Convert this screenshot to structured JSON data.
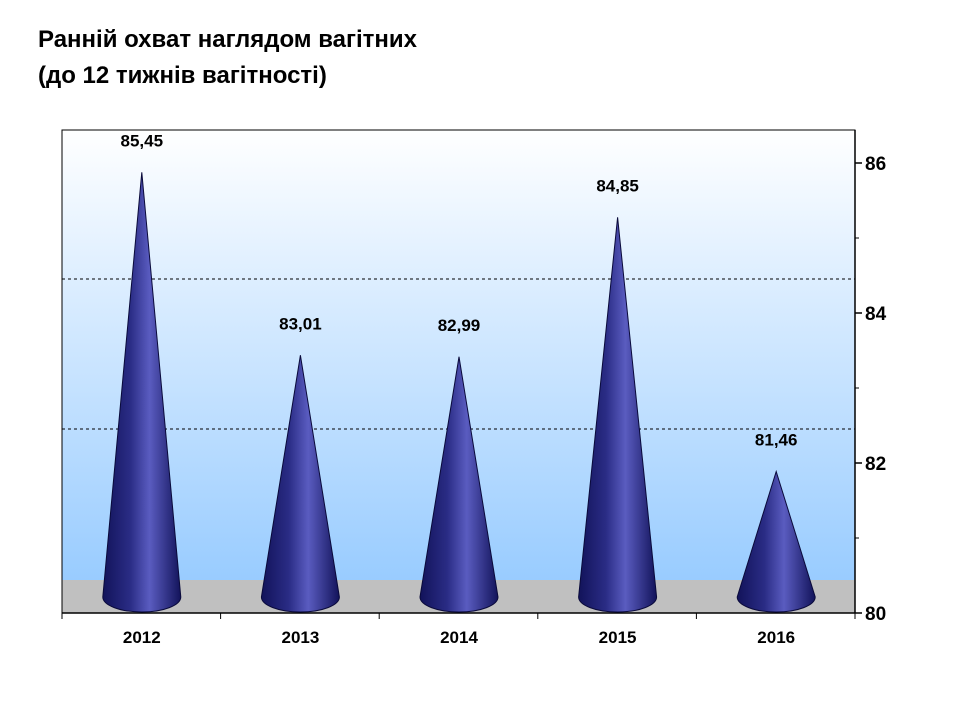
{
  "title": {
    "line1": "Ранній охват наглядом вагітних",
    "line2": "(до 12 тижнів вагітності)"
  },
  "chart_data": {
    "type": "bar",
    "bar_shape": "cone",
    "categories": [
      "2012",
      "2013",
      "2014",
      "2015",
      "2016"
    ],
    "values": [
      85.45,
      83.01,
      82.99,
      84.85,
      81.46
    ],
    "value_labels": [
      "85,45",
      "83,01",
      "82,99",
      "84,85",
      "81,46"
    ],
    "ylim": [
      80,
      86
    ],
    "yticks": [
      80,
      82,
      84,
      86
    ],
    "ytick_labels": [
      "80",
      "82",
      "84",
      "86"
    ],
    "y_axis_side": "right",
    "grid": "dashed horizontal",
    "colors": {
      "cone": "#2a2c85",
      "cone_dark": "#12135a",
      "cone_light": "#5a5cc0",
      "floor": "#c0c0c0",
      "wall_top": "#ffffff",
      "wall_bottom": "#99ccff"
    }
  }
}
